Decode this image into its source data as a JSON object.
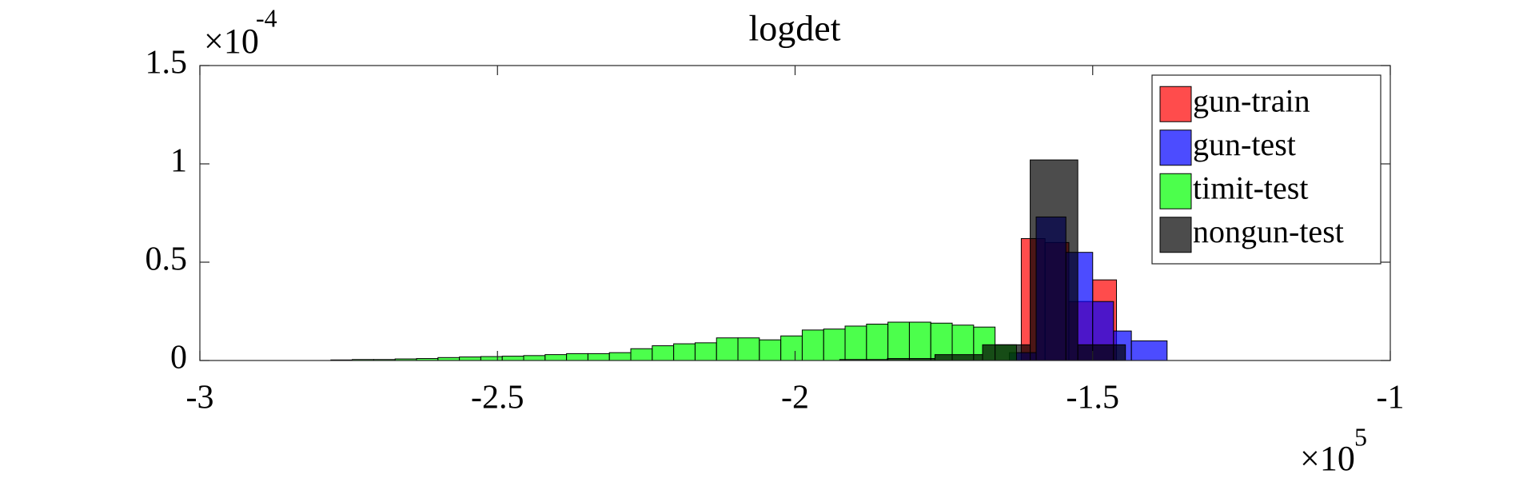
{
  "chart_data": {
    "type": "histogram",
    "title": "logdet",
    "x_multiplier": {
      "base": "×10",
      "exponent": "5"
    },
    "y_multiplier": {
      "base": "×10",
      "exponent": "-4"
    },
    "xlim": [
      -3,
      -1
    ],
    "xticks": [
      -3,
      -2.5,
      -2,
      -1.5,
      -1
    ],
    "ylim": [
      0,
      1.5
    ],
    "yticks": [
      0,
      0.5,
      1,
      1.5
    ],
    "legend": "northeast",
    "opacity": 0.7,
    "series": [
      {
        "name": "gun-train",
        "color": "#ff0000",
        "bins": [
          -1.62,
          -1.58,
          -1.54,
          -1.5,
          -1.46
        ],
        "values": [
          0.62,
          0.6,
          0.3,
          0.41
        ]
      },
      {
        "name": "gun-test",
        "color": "#0000ff",
        "bins": [
          -1.64,
          -1.595,
          -1.545,
          -1.5,
          -1.465,
          -1.435,
          -1.375
        ],
        "values": [
          0.04,
          0.73,
          0.55,
          0.3,
          0.15,
          0.1
        ]
      },
      {
        "name": "timit-test",
        "color": "#00ff00",
        "bins": [
          -2.78,
          -2.744,
          -2.708,
          -2.672,
          -2.636,
          -2.6,
          -2.564,
          -2.528,
          -2.492,
          -2.456,
          -2.42,
          -2.384,
          -2.348,
          -2.312,
          -2.276,
          -2.24,
          -2.204,
          -2.168,
          -2.132,
          -2.096,
          -2.06,
          -2.024,
          -1.988,
          -1.952,
          -1.916,
          -1.88,
          -1.844,
          -1.808,
          -1.772,
          -1.736,
          -1.7,
          -1.664,
          -1.628
        ],
        "values": [
          0.003,
          0.005,
          0.005,
          0.008,
          0.01,
          0.015,
          0.018,
          0.02,
          0.022,
          0.025,
          0.03,
          0.035,
          0.035,
          0.04,
          0.06,
          0.075,
          0.085,
          0.09,
          0.115,
          0.115,
          0.105,
          0.125,
          0.155,
          0.16,
          0.175,
          0.185,
          0.195,
          0.195,
          0.19,
          0.18,
          0.17,
          0.08
        ]
      },
      {
        "name": "nongun-test",
        "color": "#000000",
        "bins": [
          -1.925,
          -1.845,
          -1.765,
          -1.685,
          -1.605,
          -1.525,
          -1.445
        ],
        "values": [
          0.005,
          0.01,
          0.03,
          0.08,
          1.02,
          0.08
        ]
      }
    ]
  }
}
